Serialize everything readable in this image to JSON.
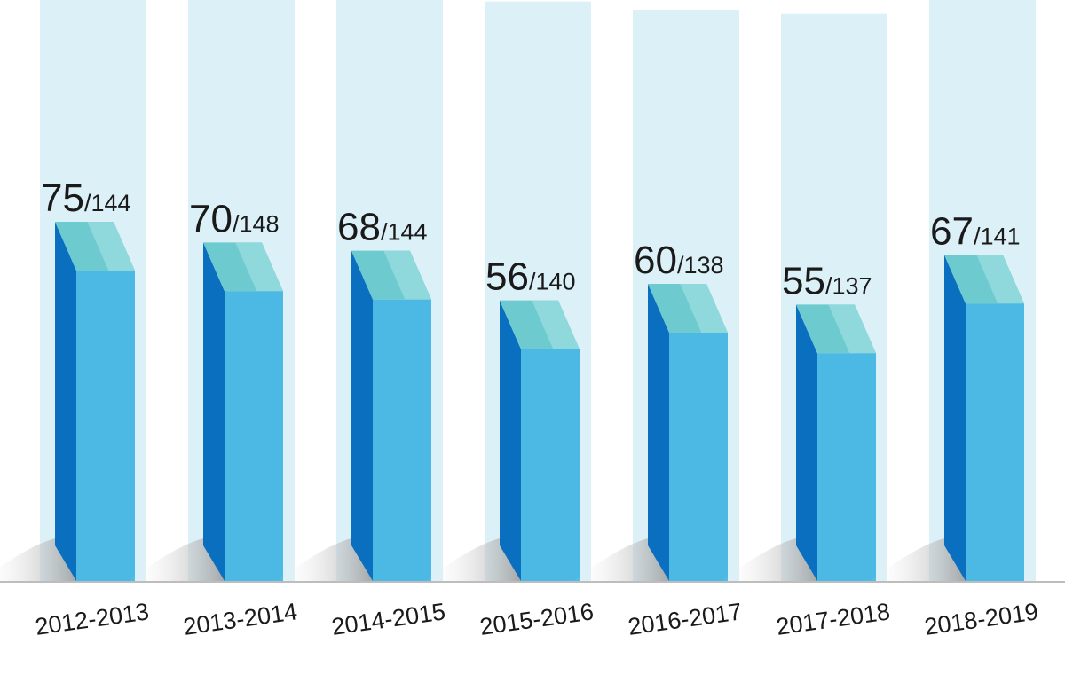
{
  "chart_data": {
    "type": "bar",
    "categories": [
      "2012-2013",
      "2013-2014",
      "2014-2015",
      "2015-2016",
      "2016-2017",
      "2017-2018",
      "2018-2019"
    ],
    "series": [
      {
        "values": [
          75,
          70,
          68,
          56,
          60,
          55,
          67
        ]
      },
      {
        "values": [
          144,
          148,
          144,
          140,
          138,
          137,
          141
        ]
      }
    ],
    "data_labels": [
      {
        "value": "75",
        "total": "/144"
      },
      {
        "value": "70",
        "total": "/148"
      },
      {
        "value": "68",
        "total": "/144"
      },
      {
        "value": "56",
        "total": "/140"
      },
      {
        "value": "60",
        "total": "/138"
      },
      {
        "value": "55",
        "total": "/137"
      },
      {
        "value": "67",
        "total": "/141"
      }
    ],
    "title": "",
    "xlabel": "",
    "ylabel": "",
    "grid": false,
    "colors": {
      "bar_front": "#4cb8e4",
      "bar_side": "#0a6fbf",
      "bar_top": "#6dcbd0",
      "bar_top_light": "#8fd8dc",
      "background_column": "#dcf0f8",
      "baseline": "#bdbdbd"
    }
  }
}
